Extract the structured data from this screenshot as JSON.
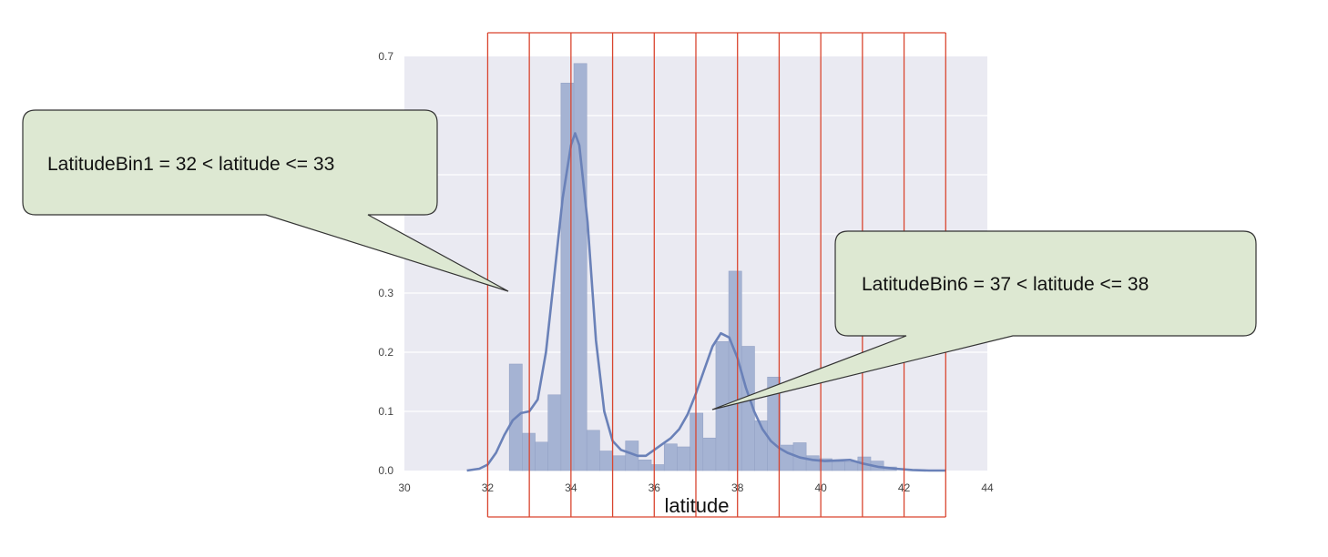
{
  "chart_data": {
    "type": "bar",
    "title": "",
    "xlabel": "latitude",
    "ylabel": "",
    "xlim": [
      30,
      44
    ],
    "ylim": [
      0,
      0.7
    ],
    "x_ticks": [
      "30",
      "32",
      "34",
      "36",
      "38",
      "40",
      "42",
      "44"
    ],
    "y_ticks": [
      "0.0",
      "0.1",
      "0.2",
      "0.3",
      "0.7"
    ],
    "grid": true,
    "colors": {
      "plot_background": "#eaeaf2",
      "bar_fill": "#a5b3d3",
      "bar_edge": "#95a3c6",
      "kde_line": "#6a81b8",
      "bin_border": "#d9452f",
      "callout_fill": "#dde8d2",
      "callout_border": "#333333"
    },
    "histogram": {
      "bin_width": 0.31,
      "bin_lefts": [
        32.52,
        32.83,
        33.14,
        33.45,
        33.76,
        34.07,
        34.38,
        34.69,
        35.0,
        35.31,
        35.62,
        35.93,
        36.24,
        36.55,
        36.86,
        37.17,
        37.48,
        37.79,
        38.1,
        38.41,
        38.72,
        39.03,
        39.34,
        39.65,
        39.96,
        40.27,
        40.58,
        40.89,
        41.2,
        41.51
      ],
      "counts": [
        0.18,
        0.063,
        0.048,
        0.128,
        0.655,
        0.688,
        0.068,
        0.033,
        0.025,
        0.05,
        0.018,
        0.01,
        0.045,
        0.04,
        0.097,
        0.055,
        0.218,
        0.337,
        0.21,
        0.084,
        0.158,
        0.043,
        0.047,
        0.025,
        0.02,
        0.015,
        0.015,
        0.023,
        0.016,
        0.006
      ]
    },
    "kde": {
      "x": [
        31.5,
        31.8,
        32.0,
        32.2,
        32.4,
        32.6,
        32.8,
        33.0,
        33.2,
        33.4,
        33.6,
        33.8,
        34.0,
        34.1,
        34.2,
        34.4,
        34.6,
        34.8,
        35.0,
        35.2,
        35.4,
        35.6,
        35.8,
        36.0,
        36.2,
        36.4,
        36.6,
        36.8,
        37.0,
        37.2,
        37.4,
        37.6,
        37.8,
        38.0,
        38.2,
        38.4,
        38.6,
        38.8,
        39.0,
        39.2,
        39.5,
        39.8,
        40.1,
        40.4,
        40.7,
        41.0,
        41.4,
        41.8,
        42.2,
        42.6,
        43.0
      ],
      "y": [
        0.0,
        0.003,
        0.01,
        0.03,
        0.06,
        0.085,
        0.097,
        0.1,
        0.12,
        0.2,
        0.33,
        0.46,
        0.55,
        0.57,
        0.55,
        0.42,
        0.22,
        0.1,
        0.05,
        0.035,
        0.03,
        0.025,
        0.025,
        0.035,
        0.045,
        0.055,
        0.07,
        0.095,
        0.13,
        0.17,
        0.21,
        0.232,
        0.225,
        0.19,
        0.14,
        0.1,
        0.07,
        0.05,
        0.038,
        0.03,
        0.022,
        0.018,
        0.016,
        0.017,
        0.018,
        0.012,
        0.006,
        0.003,
        0.001,
        0.0,
        0.0
      ]
    },
    "bin_edges": [
      32.0,
      33.0,
      34.0,
      35.0,
      36.0,
      37.0,
      38.0,
      39.0,
      40.0,
      41.0,
      42.0,
      43.0
    ],
    "annotations": [
      {
        "text": "LatitudeBin1 = 32 < latitude <= 33",
        "target_x": 32.5,
        "target_y": 0.3
      },
      {
        "text": "LatitudeBin6 = 37 < latitude <= 38",
        "target_x": 37.4,
        "target_y": 0.1
      }
    ]
  }
}
